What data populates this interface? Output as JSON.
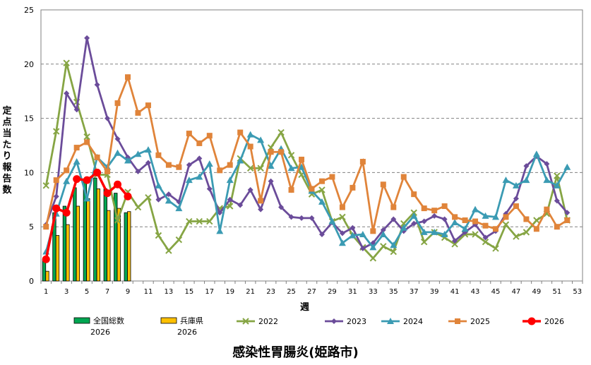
{
  "chart_data": {
    "type": "bar+line",
    "title": "感染性胃腸炎(姫路市)",
    "xlabel": "週",
    "ylabel": "定点当たり報告数",
    "ylim": [
      0,
      25
    ],
    "yticks": [
      0,
      5,
      10,
      15,
      20,
      25
    ],
    "xticks": [
      1,
      3,
      5,
      7,
      9,
      11,
      13,
      15,
      17,
      19,
      21,
      23,
      25,
      27,
      29,
      31,
      33,
      35,
      37,
      39,
      41,
      43,
      45,
      47,
      49,
      51,
      53
    ],
    "grid": "horizontal dashed",
    "legend": "bottom",
    "bars": [
      {
        "name": "全国総数\n2026",
        "label1": "全国総数",
        "label2": "2026",
        "color": "#00a651",
        "values": [
          2.0,
          6.3,
          6.9,
          8.6,
          9.4,
          9.5,
          8.5,
          8.1,
          6.3
        ]
      },
      {
        "name": "兵庫県\n2026",
        "label1": "兵庫県",
        "label2": "2026",
        "color": "#ffc000",
        "values": [
          0.9,
          4.2,
          5.2,
          6.9,
          7.6,
          8.5,
          6.5,
          6.7,
          6.4
        ]
      }
    ],
    "series": [
      {
        "name": "2022",
        "color": "#86a544",
        "marker": "x",
        "values": [
          8.8,
          13.8,
          20.1,
          16.5,
          13.3,
          9.8,
          9.8,
          5.6,
          8.2,
          6.8,
          7.7,
          4.2,
          2.8,
          3.8,
          5.5,
          5.5,
          5.5,
          6.7,
          6.9,
          11.3,
          10.4,
          10.4,
          12.3,
          13.7,
          11.6,
          9.8,
          8.0,
          8.4,
          5.5,
          5.9,
          4.2,
          3.1,
          2.1,
          3.2,
          2.7,
          5.3,
          6.3,
          3.6,
          4.5,
          4.0,
          3.4,
          4.3,
          4.3,
          3.6,
          3.0,
          5.2,
          4.1,
          4.5,
          5.6,
          6.2,
          9.7,
          5.6
        ]
      },
      {
        "name": "2023",
        "color": "#6b4c9a",
        "marker": "diamond",
        "values": [
          5.2,
          7.8,
          17.3,
          15.8,
          22.4,
          18.1,
          15.0,
          13.1,
          11.4,
          10.1,
          10.9,
          7.5,
          8.0,
          7.3,
          10.7,
          11.3,
          8.5,
          6.3,
          7.5,
          7.0,
          8.4,
          6.6,
          9.2,
          6.8,
          5.9,
          5.8,
          5.8,
          4.3,
          5.4,
          4.4,
          4.9,
          3.0,
          3.5,
          4.7,
          5.7,
          4.6,
          5.3,
          5.5,
          6.0,
          5.7,
          3.7,
          4.5,
          5.2,
          4.0,
          4.6,
          6.2,
          7.6,
          10.6,
          11.5,
          10.8,
          7.4,
          6.3
        ]
      },
      {
        "name": "2024",
        "color": "#3b9bb3",
        "marker": "triangle",
        "values": [
          2.7,
          6.2,
          9.2,
          11.0,
          7.6,
          11.4,
          10.5,
          11.8,
          11.1,
          11.7,
          12.1,
          8.8,
          7.4,
          6.7,
          9.3,
          9.6,
          10.8,
          4.6,
          9.3,
          11.1,
          13.5,
          13.0,
          10.6,
          12.2,
          10.4,
          10.5,
          8.3,
          7.3,
          5.5,
          3.5,
          4.2,
          4.3,
          3.1,
          4.3,
          3.3,
          4.9,
          6.0,
          4.5,
          4.5,
          4.3,
          5.4,
          4.8,
          6.6,
          6.0,
          5.9,
          9.3,
          8.8,
          9.3,
          11.7,
          9.3,
          8.8,
          10.5
        ]
      },
      {
        "name": "2025",
        "color": "#e0843a",
        "marker": "square",
        "values": [
          5.0,
          9.3,
          10.2,
          12.3,
          12.8,
          11.4,
          10.1,
          16.4,
          18.8,
          15.5,
          16.2,
          11.6,
          10.7,
          10.5,
          13.6,
          12.7,
          13.4,
          10.2,
          10.7,
          13.7,
          12.4,
          7.4,
          11.9,
          11.9,
          8.4,
          11.2,
          8.5,
          9.2,
          9.6,
          6.8,
          8.6,
          11.0,
          4.6,
          8.9,
          6.8,
          9.6,
          8.0,
          6.7,
          6.5,
          6.9,
          5.9,
          5.6,
          5.5,
          5.1,
          4.8,
          5.9,
          6.9,
          5.7,
          4.8,
          6.6,
          5.0,
          5.6
        ]
      },
      {
        "name": "2026",
        "color": "#ff0000",
        "marker": "circle",
        "values": [
          2.0,
          6.7,
          6.3,
          9.4,
          9.3,
          10.0,
          8.1,
          8.9,
          7.8
        ]
      }
    ]
  }
}
